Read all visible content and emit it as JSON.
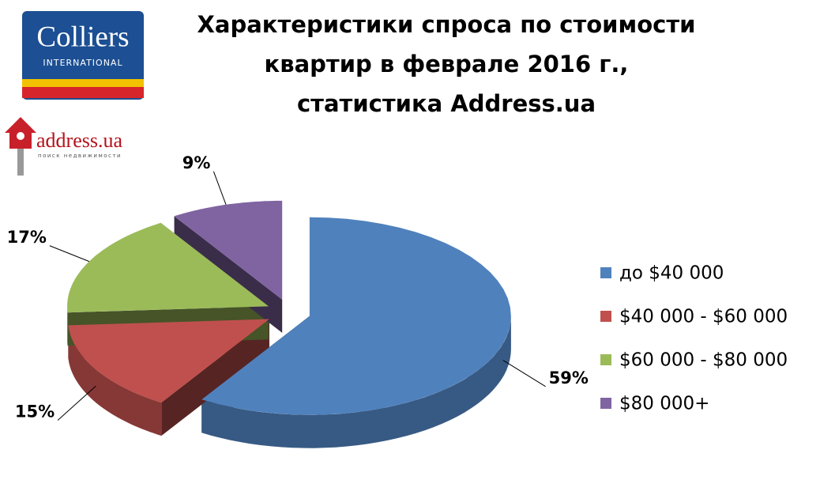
{
  "logos": {
    "colliers": "Colliers",
    "colliers_sub": "INTERNATIONAL",
    "address": "address.ua",
    "address_sub": "поиск недвижимости"
  },
  "chart_data": {
    "type": "pie",
    "title": "Характеристики спроса по стоимости\nквартир в феврале 2016 г.,\nстатистика Address.ua",
    "categories": [
      "до $40 000",
      "$40 000 - $60 000",
      "$60 000 - $80 000",
      "$80 000+"
    ],
    "values": [
      59,
      15,
      17,
      9
    ],
    "value_labels": [
      "59%",
      "15%",
      "17%",
      "9%"
    ],
    "colors": [
      "#4f81bd",
      "#c0504d",
      "#9bbb59",
      "#8064a2"
    ],
    "legend": "right"
  }
}
